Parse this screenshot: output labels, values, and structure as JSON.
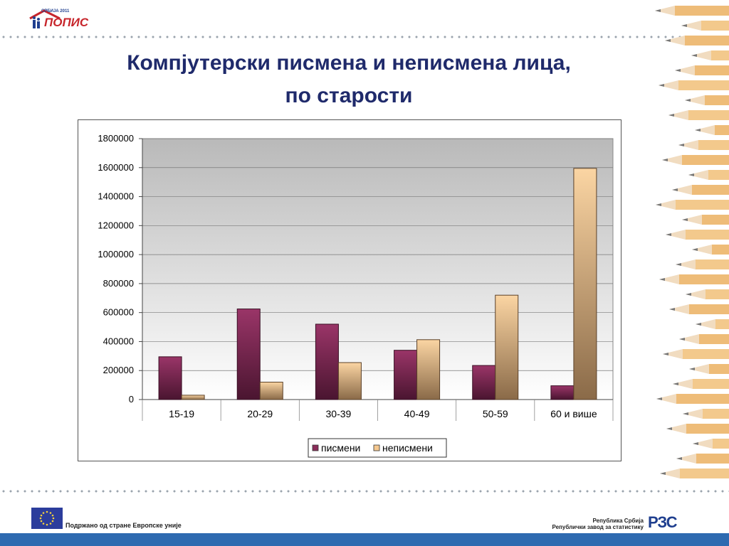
{
  "header": {
    "logo_small": "СРБИЈА 2011",
    "logo_word": "ПОПИС",
    "title_line1": "Компјутерски писмена и неписмена лица,",
    "title_line2": "по старости"
  },
  "footer": {
    "eu_text": "Подржано од стране Европске уније",
    "rzs_line1": "Република Србија",
    "rzs_line2": "Републички  завод за статистику",
    "rzs_logo": "РЗС"
  },
  "colors": {
    "series1": "#8b2d5a",
    "series2": "#f5c88f",
    "plot_bg_top": "#b9b9b9",
    "plot_bg_bottom": "#ffffff"
  },
  "chart_data": {
    "type": "bar",
    "title": "",
    "xlabel": "",
    "ylabel": "",
    "categories": [
      "15-19",
      "20-29",
      "30-39",
      "40-49",
      "50-59",
      "60 и више"
    ],
    "series": [
      {
        "name": "писмени",
        "values": [
          295000,
          625000,
          520000,
          340000,
          235000,
          95000
        ]
      },
      {
        "name": "неписмени",
        "values": [
          30000,
          120000,
          255000,
          413000,
          720000,
          1595000
        ]
      }
    ],
    "ylim": [
      0,
      1800000
    ],
    "yticks": [
      "0",
      "200000",
      "400000",
      "600000",
      "800000",
      "1000000",
      "1200000",
      "1400000",
      "1600000",
      "1800000"
    ],
    "grid": true,
    "legend": "bottom"
  }
}
